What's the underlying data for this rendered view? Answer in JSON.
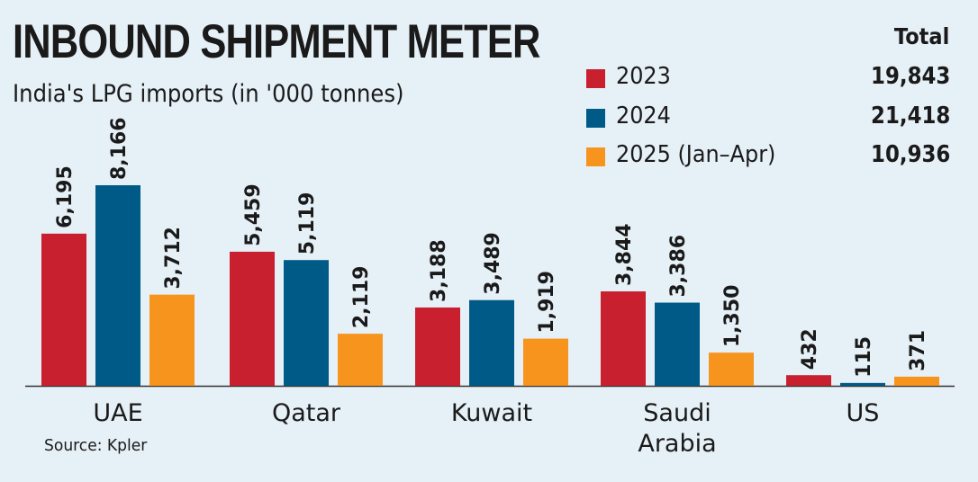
{
  "title": "INBOUND SHIPMENT METER",
  "subtitle": "India's LPG imports (in '000 tonnes)",
  "legend": {
    "total_heading": "Total",
    "items": [
      {
        "label": "2023",
        "total": "19,843",
        "color": "#c8202f"
      },
      {
        "label": "2024",
        "total": "21,418",
        "color": "#005a87"
      },
      {
        "label": "2025 (Jan–Apr)",
        "total": "10,936",
        "color": "#f7941d"
      }
    ]
  },
  "source": "Source: Kpler",
  "chart_data": {
    "type": "bar",
    "title": "INBOUND SHIPMENT METER",
    "subtitle": "India's LPG imports (in '000 tonnes)",
    "categories": [
      "UAE",
      "Qatar",
      "Kuwait",
      "Saudi Arabia",
      "US"
    ],
    "category_lines": [
      [
        "UAE"
      ],
      [
        "Qatar"
      ],
      [
        "Kuwait"
      ],
      [
        "Saudi",
        "Arabia"
      ],
      [
        "US"
      ]
    ],
    "series": [
      {
        "name": "2023",
        "color": "#c8202f",
        "values": [
          6195,
          5459,
          3188,
          3844,
          432
        ],
        "labels": [
          "6,195",
          "5,459",
          "3,188",
          "3,844",
          "432"
        ]
      },
      {
        "name": "2024",
        "color": "#005a87",
        "values": [
          8166,
          5119,
          3489,
          3386,
          115
        ],
        "labels": [
          "8,166",
          "5,119",
          "3,489",
          "3,386",
          "115"
        ]
      },
      {
        "name": "2025 (Jan–Apr)",
        "color": "#f7941d",
        "values": [
          3712,
          2119,
          1919,
          1350,
          371
        ],
        "labels": [
          "3,712",
          "2,119",
          "1,919",
          "1,350",
          "371"
        ]
      }
    ],
    "ylim": [
      0,
      8166
    ],
    "grid": false,
    "legend": "top-right"
  }
}
